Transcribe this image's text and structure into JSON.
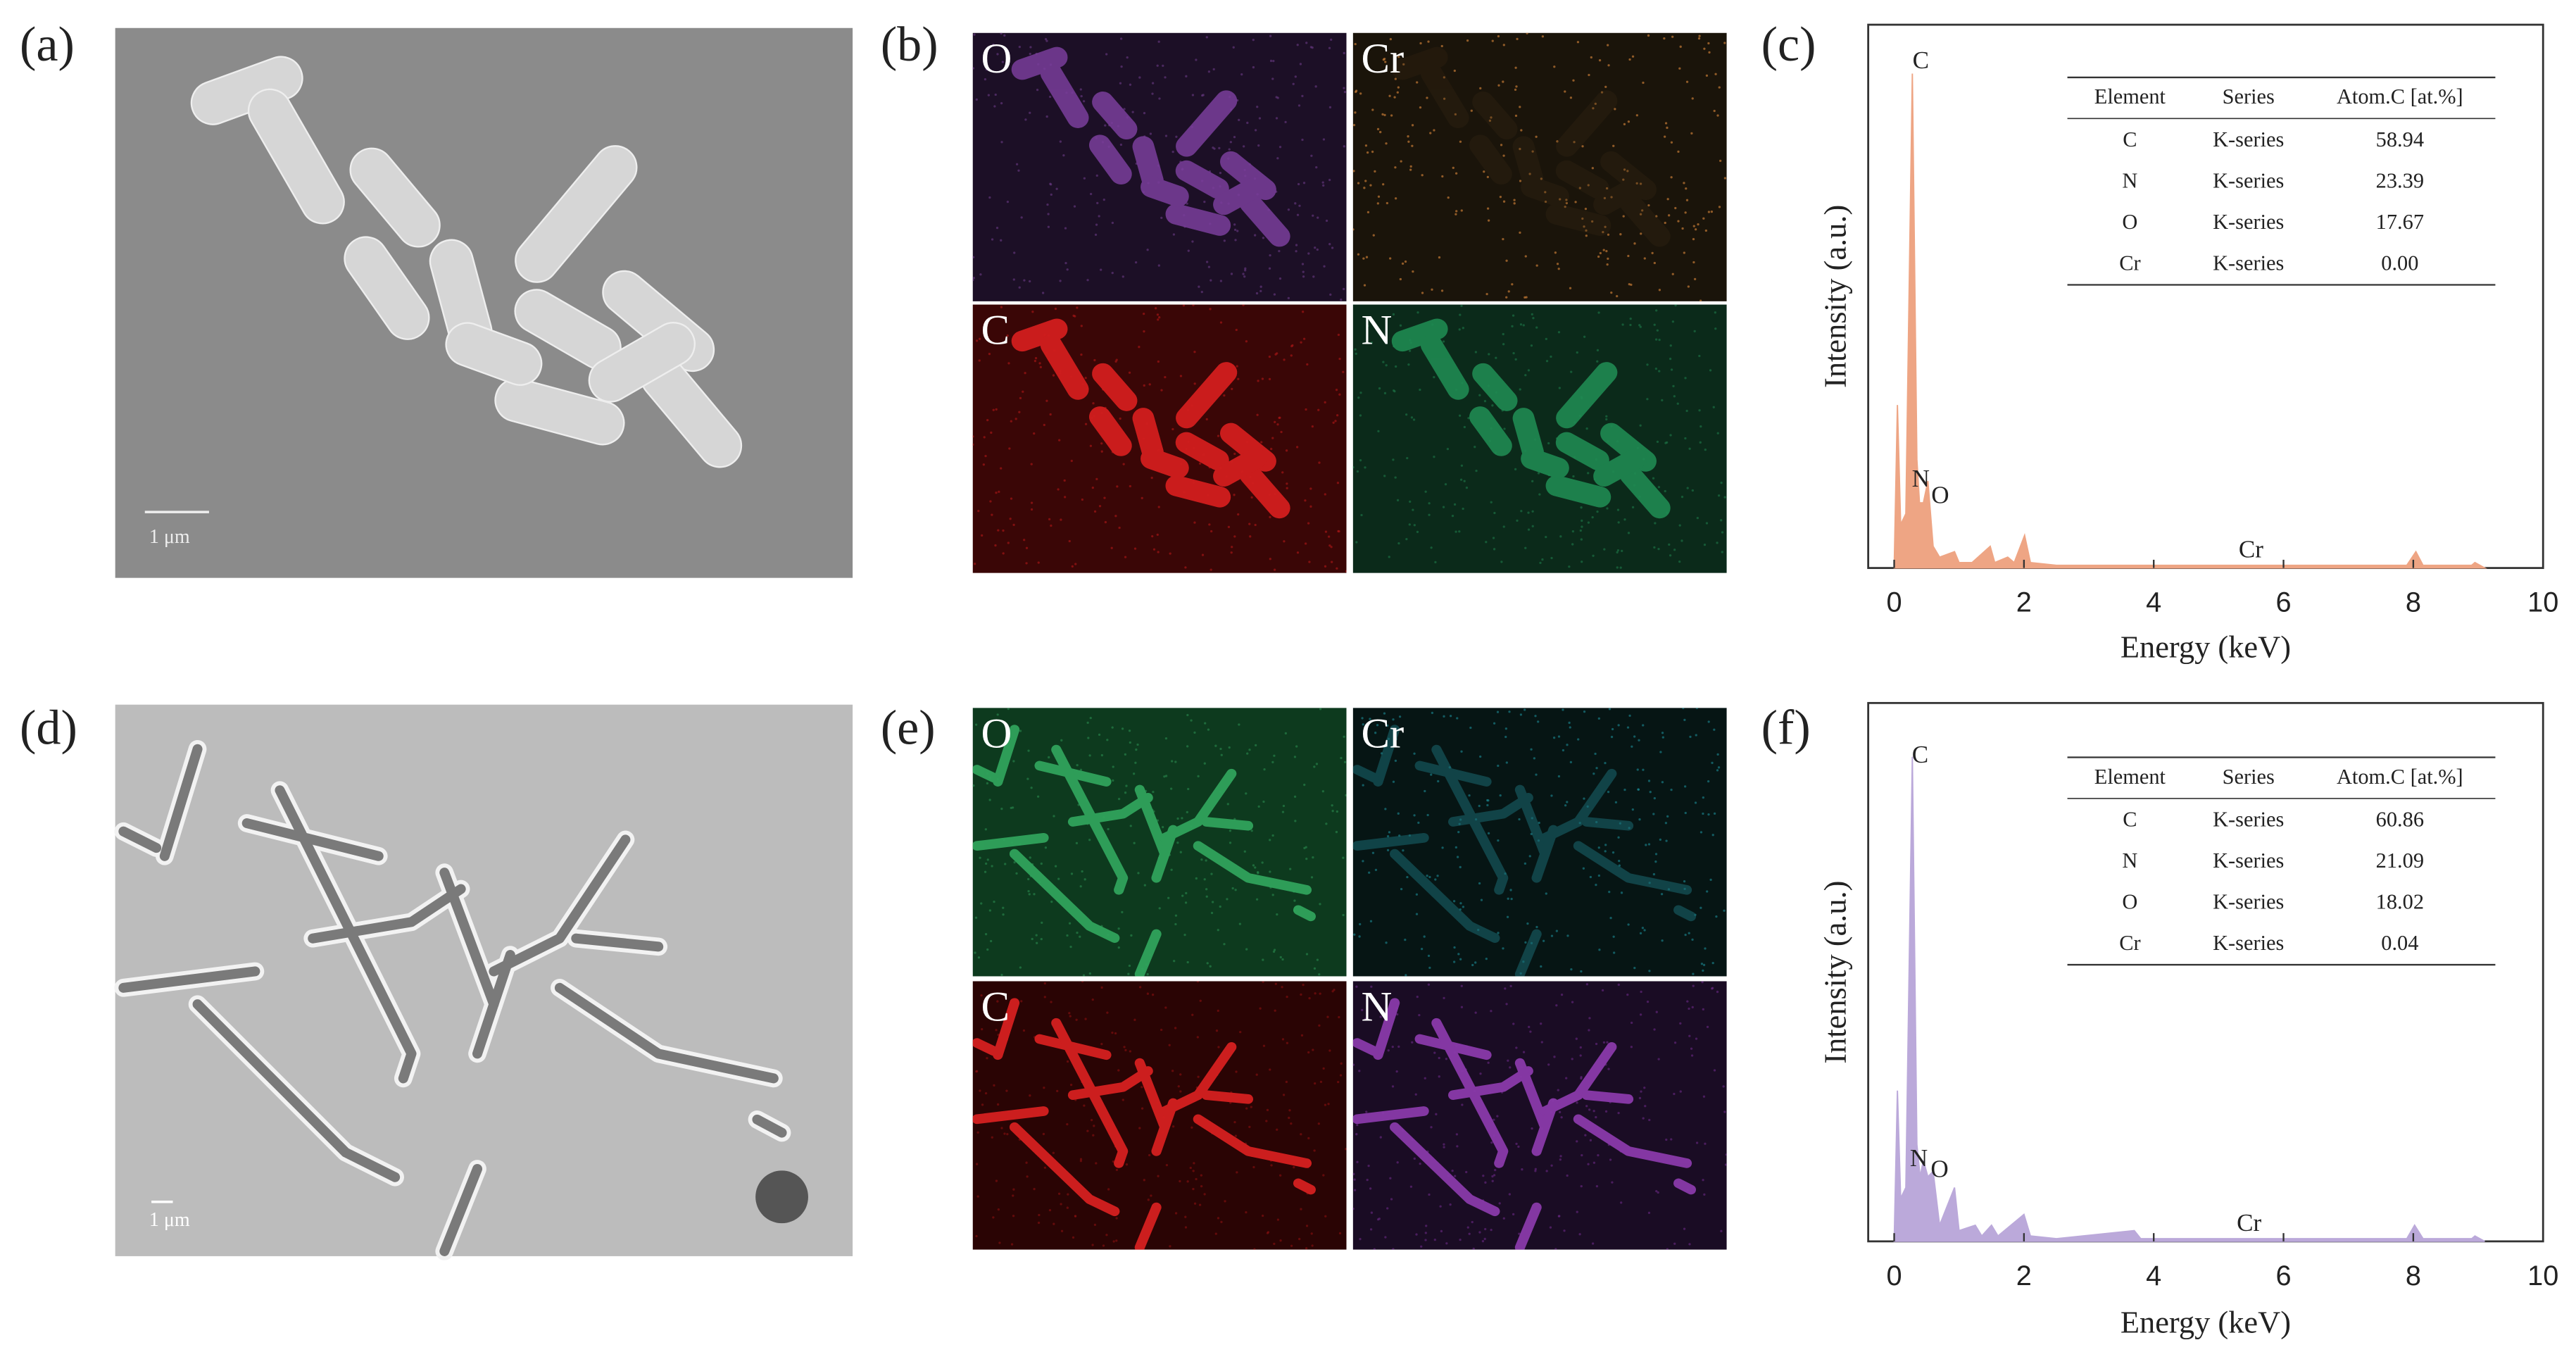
{
  "panels": [
    {
      "label": "(a)",
      "scale_bar": "1 μm"
    },
    {
      "label": "(b)",
      "maps": [
        "O",
        "Cr",
        "C",
        "N"
      ]
    },
    {
      "label": "(c)"
    },
    {
      "label": "(d)",
      "scale_bar": "1 μm"
    },
    {
      "label": "(e)",
      "maps": [
        "O",
        "Cr",
        "C",
        "N"
      ]
    },
    {
      "label": "(f)"
    }
  ],
  "chart_data": [
    {
      "type": "area",
      "xlabel": "Energy (keV)",
      "ylabel": "Intensity (a.u.)",
      "color": "#eea584",
      "x": [
        0,
        0.05,
        0.1,
        0.18,
        0.28,
        0.35,
        0.39,
        0.45,
        0.52,
        0.6,
        0.7,
        0.93,
        1.0,
        1.2,
        1.48,
        1.55,
        1.75,
        1.85,
        2.01,
        2.1,
        2.5,
        5.41,
        7.9,
        8.04,
        8.15,
        8.9,
        8.95,
        9.1
      ],
      "values": [
        0,
        30,
        8,
        10,
        91,
        20,
        12,
        12,
        16,
        4,
        2,
        3,
        1,
        1,
        4,
        1,
        2,
        1,
        6,
        1,
        0.5,
        0.5,
        0.5,
        3,
        0.5,
        0.5,
        1,
        0
      ],
      "xlim": [
        -0.4,
        10
      ],
      "ylim": [
        0,
        100
      ],
      "xticks": [
        0,
        2,
        4,
        6,
        8,
        10
      ],
      "annotations": [
        {
          "text": "C",
          "x": 0.41,
          "y": 93
        },
        {
          "text": "N",
          "x": 0.41,
          "y": 16
        },
        {
          "text": "O",
          "x": 0.71,
          "y": 13
        },
        {
          "text": "Cr",
          "x": 5.5,
          "y": 3
        }
      ],
      "table": {
        "columns": [
          "Element",
          "Series",
          "Atom.C [at.%]"
        ],
        "rows": [
          [
            "C",
            "K-series",
            "58.94"
          ],
          [
            "N",
            "K-series",
            "23.39"
          ],
          [
            "O",
            "K-series",
            "17.67"
          ],
          [
            "Cr",
            "K-series",
            "0.00"
          ]
        ]
      }
    },
    {
      "type": "area",
      "xlabel": "Energy (keV)",
      "ylabel": "Intensity (a.u.)",
      "color": "#bba9da",
      "x": [
        0,
        0.05,
        0.1,
        0.18,
        0.28,
        0.35,
        0.4,
        0.45,
        0.52,
        0.6,
        0.7,
        0.93,
        1.0,
        1.25,
        1.35,
        1.5,
        1.6,
        2.0,
        2.1,
        2.5,
        3.7,
        3.8,
        5.4,
        7.9,
        8.02,
        8.15,
        8.9,
        8.95,
        9.1
      ],
      "values": [
        0,
        28,
        8,
        10,
        90,
        18,
        12,
        15,
        12,
        13,
        3,
        10,
        2,
        3,
        1,
        3,
        1,
        5,
        1,
        0.5,
        2,
        0.5,
        0.5,
        0.5,
        3,
        0.5,
        0.5,
        1,
        0
      ],
      "xlim": [
        -0.4,
        10
      ],
      "ylim": [
        0,
        100
      ],
      "xticks": [
        0,
        2,
        4,
        6,
        8,
        10
      ],
      "annotations": [
        {
          "text": "C",
          "x": 0.4,
          "y": 90
        },
        {
          "text": "N",
          "x": 0.38,
          "y": 15
        },
        {
          "text": "O",
          "x": 0.7,
          "y": 13
        },
        {
          "text": "Cr",
          "x": 5.47,
          "y": 3
        }
      ],
      "table": {
        "columns": [
          "Element",
          "Series",
          "Atom.C [at.%]"
        ],
        "rows": [
          [
            "C",
            "K-series",
            "60.86"
          ],
          [
            "N",
            "K-series",
            "21.09"
          ],
          [
            "O",
            "K-series",
            "18.02"
          ],
          [
            "Cr",
            "K-series",
            "0.04"
          ]
        ]
      }
    }
  ]
}
